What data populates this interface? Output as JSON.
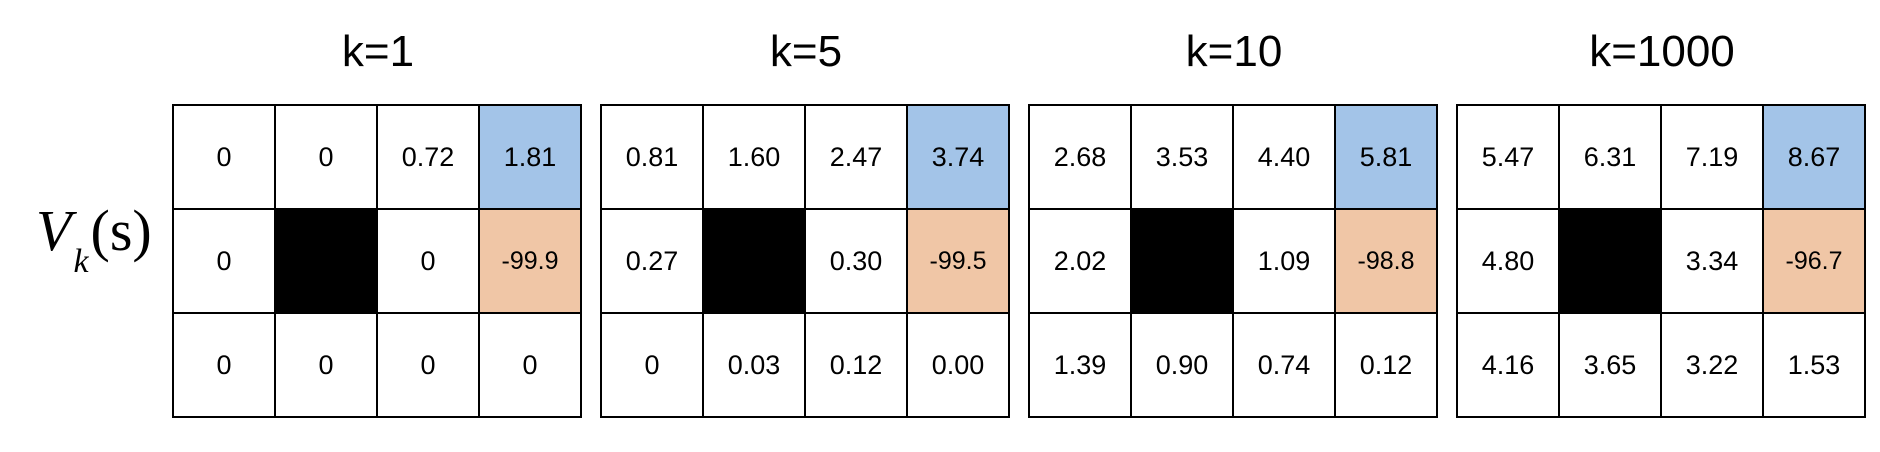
{
  "row_label": {
    "symbol": "V",
    "subscript": "k",
    "argument": "(s)"
  },
  "colors": {
    "goal": "#a3c4e8",
    "trap": "#f0c6a6",
    "wall": "#000000"
  },
  "panels": [
    {
      "title": "k=1",
      "rows": [
        [
          "0",
          "0",
          "0.72",
          "1.81"
        ],
        [
          "0",
          "",
          "0",
          "-99.9"
        ],
        [
          "0",
          "0",
          "0",
          "0"
        ]
      ]
    },
    {
      "title": "k=5",
      "rows": [
        [
          "0.81",
          "1.60",
          "2.47",
          "3.74"
        ],
        [
          "0.27",
          "",
          "0.30",
          "-99.5"
        ],
        [
          "0",
          "0.03",
          "0.12",
          "0.00"
        ]
      ]
    },
    {
      "title": "k=10",
      "rows": [
        [
          "2.68",
          "3.53",
          "4.40",
          "5.81"
        ],
        [
          "2.02",
          "",
          "1.09",
          "-98.8"
        ],
        [
          "1.39",
          "0.90",
          "0.74",
          "0.12"
        ]
      ]
    },
    {
      "title": "k=1000",
      "rows": [
        [
          "5.47",
          "6.31",
          "7.19",
          "8.67"
        ],
        [
          "4.80",
          "",
          "3.34",
          "-96.7"
        ],
        [
          "4.16",
          "3.65",
          "3.22",
          "1.53"
        ]
      ]
    }
  ]
}
